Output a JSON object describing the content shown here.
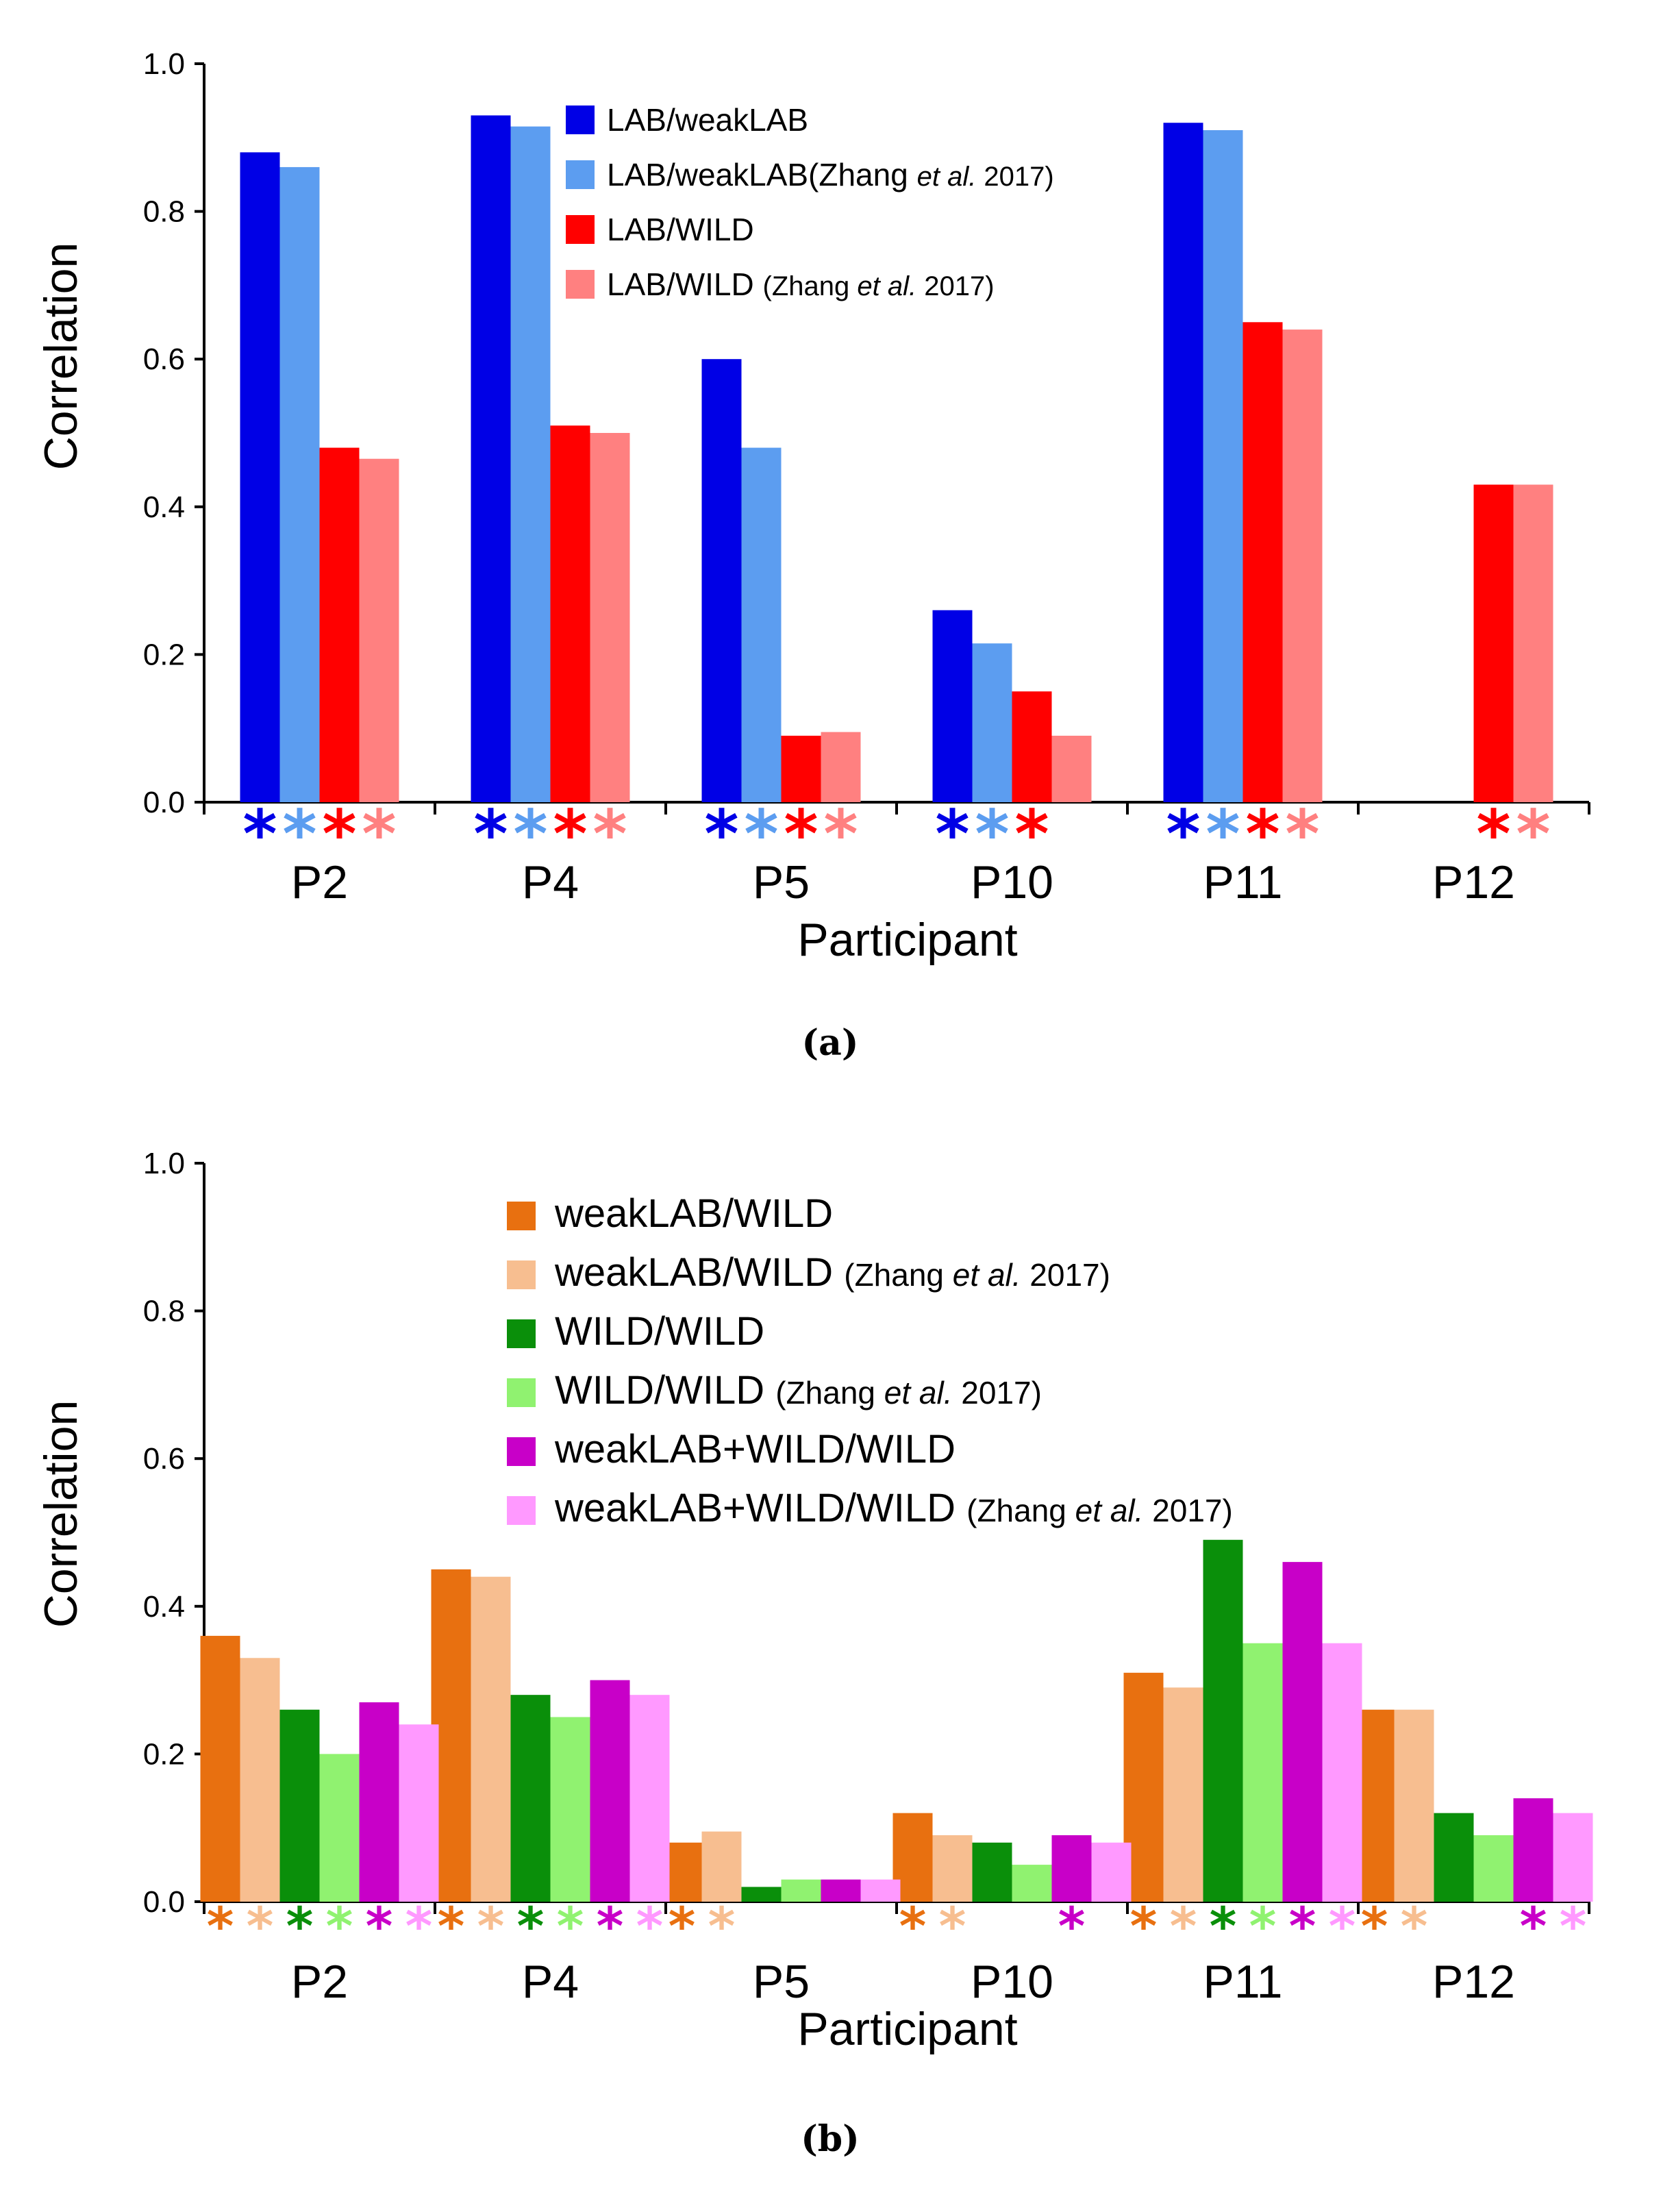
{
  "chart_data": [
    {
      "type": "bar",
      "caption": "(a)",
      "xlabel": "Participant",
      "ylabel": "Correlation",
      "ylim": [
        0,
        1.0
      ],
      "yticks": [
        "0.0",
        "0.2",
        "0.4",
        "0.6",
        "0.8",
        "1.0"
      ],
      "categories": [
        "P2",
        "P4",
        "P5",
        "P10",
        "P11",
        "P12"
      ],
      "legend_position": "top-center",
      "series": [
        {
          "name": "LAB/weakLAB",
          "color": "#0000E6",
          "values": [
            0.88,
            0.93,
            0.6,
            0.26,
            0.92,
            null
          ],
          "significant": [
            true,
            true,
            true,
            true,
            true,
            false
          ]
        },
        {
          "name": "LAB/weakLAB(Zhang et al. 2017)",
          "legend_main": "LAB/weakLAB(Zhang ",
          "legend_italic": "et al.",
          "legend_end": " 2017)",
          "color": "#5C9DF0",
          "values": [
            0.86,
            0.915,
            0.48,
            0.215,
            0.91,
            null
          ],
          "significant": [
            true,
            true,
            true,
            true,
            true,
            false
          ]
        },
        {
          "name": "LAB/WILD",
          "color": "#FF0000",
          "values": [
            0.48,
            0.51,
            0.09,
            0.15,
            0.65,
            0.43
          ],
          "significant": [
            true,
            true,
            true,
            true,
            true,
            true
          ]
        },
        {
          "name": "LAB/WILD (Zhang et al. 2017)",
          "legend_main": "LAB/WILD ",
          "legend_paren": "(Zhang ",
          "legend_italic": "et al.",
          "legend_end": " 2017)",
          "color": "#FF8080",
          "values": [
            0.465,
            0.5,
            0.095,
            0.09,
            0.64,
            0.43
          ],
          "significant": [
            true,
            true,
            true,
            false,
            true,
            true
          ]
        }
      ]
    },
    {
      "type": "bar",
      "caption": "(b)",
      "xlabel": "Participant",
      "ylabel": "Correlation",
      "ylim": [
        0,
        1.0
      ],
      "yticks": [
        "0.0",
        "0.2",
        "0.4",
        "0.6",
        "0.8",
        "1.0"
      ],
      "categories": [
        "P2",
        "P4",
        "P5",
        "P10",
        "P11",
        "P12"
      ],
      "legend_position": "top-center",
      "series": [
        {
          "name": "weakLAB/WILD",
          "color": "#E87010",
          "values": [
            0.36,
            0.45,
            0.08,
            0.12,
            0.31,
            0.26
          ],
          "significant": [
            true,
            true,
            true,
            true,
            true,
            true
          ]
        },
        {
          "name": "weakLAB/WILD (Zhang et al. 2017)",
          "legend_main": "weakLAB/WILD ",
          "legend_paren": "(Zhang ",
          "legend_italic": "et al.",
          "legend_end": " 2017)",
          "color": "#F7BE90",
          "values": [
            0.33,
            0.44,
            0.095,
            0.09,
            0.29,
            0.26
          ],
          "significant": [
            true,
            true,
            true,
            true,
            true,
            true
          ]
        },
        {
          "name": "WILD/WILD",
          "color": "#0A8F0A",
          "values": [
            0.26,
            0.28,
            0.02,
            0.08,
            0.49,
            0.12
          ],
          "significant": [
            true,
            true,
            false,
            false,
            true,
            false
          ]
        },
        {
          "name": "WILD/WILD (Zhang et al. 2017)",
          "legend_main": "WILD/WILD ",
          "legend_paren": " (Zhang ",
          "legend_italic": "et al.",
          "legend_end": " 2017)",
          "color": "#90F270",
          "values": [
            0.2,
            0.25,
            0.03,
            0.05,
            0.35,
            0.09
          ],
          "significant": [
            true,
            true,
            false,
            false,
            true,
            false
          ]
        },
        {
          "name": "weakLAB+WILD/WILD",
          "color": "#C800C8",
          "values": [
            0.27,
            0.3,
            0.03,
            0.09,
            0.46,
            0.14
          ],
          "significant": [
            true,
            true,
            false,
            true,
            true,
            true
          ]
        },
        {
          "name": "weakLAB+WILD/WILD (Zhang et al. 2017)",
          "legend_main": "weakLAB+WILD/WILD ",
          "legend_paren": "(Zhang ",
          "legend_italic": "et al.",
          "legend_end": " 2017)",
          "color": "#FF99FF",
          "values": [
            0.24,
            0.28,
            0.03,
            0.08,
            0.35,
            0.12
          ],
          "significant": [
            true,
            true,
            false,
            false,
            true,
            true
          ]
        }
      ]
    }
  ]
}
